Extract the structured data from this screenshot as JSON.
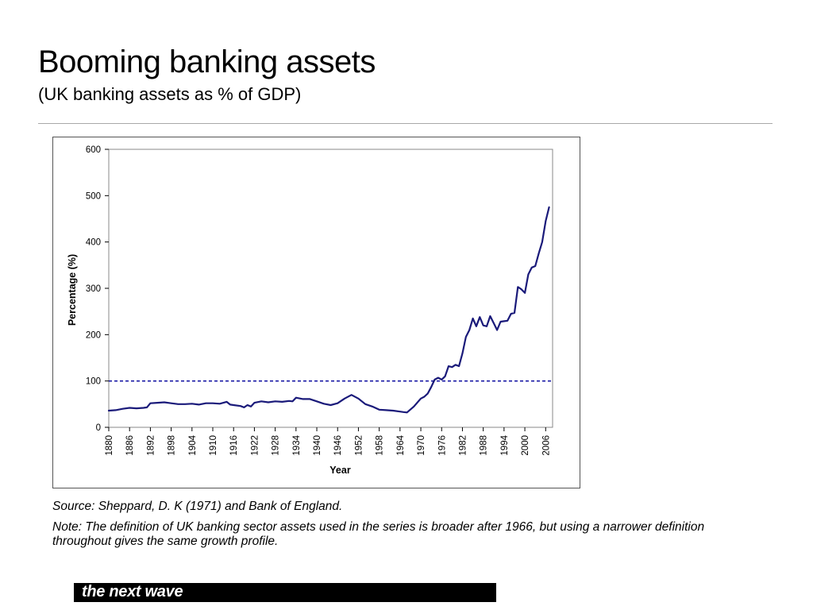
{
  "slide": {
    "title": "Booming banking assets",
    "subtitle": "(UK banking assets as % of GDP)"
  },
  "chart_data": {
    "type": "line",
    "xlabel": "Year",
    "ylabel": "Percentage (%)",
    "ylim": [
      0,
      600
    ],
    "yticks": [
      0,
      100,
      200,
      300,
      400,
      500,
      600
    ],
    "xlim": [
      1880,
      2008
    ],
    "xticks": [
      "1880",
      "1886",
      "1892",
      "1898",
      "1904",
      "1910",
      "1916",
      "1922",
      "1928",
      "1934",
      "1940",
      "1946",
      "1952",
      "1958",
      "1964",
      "1970",
      "1976",
      "1982",
      "1988",
      "1994",
      "2000",
      "2006"
    ],
    "grid": false,
    "series": [
      {
        "color": "#1a1a7a",
        "x": [
          1880,
          1882,
          1884,
          1886,
          1888,
          1890,
          1891,
          1892,
          1894,
          1896,
          1898,
          1900,
          1902,
          1904,
          1906,
          1908,
          1910,
          1912,
          1914,
          1915,
          1916,
          1918,
          1919,
          1920,
          1921,
          1922,
          1924,
          1926,
          1928,
          1930,
          1932,
          1933,
          1934,
          1936,
          1938,
          1940,
          1942,
          1944,
          1946,
          1948,
          1950,
          1952,
          1954,
          1956,
          1958,
          1960,
          1962,
          1964,
          1965,
          1966,
          1968,
          1970,
          1971,
          1972,
          1973,
          1974,
          1975,
          1976,
          1977,
          1978,
          1979,
          1980,
          1981,
          1982,
          1983,
          1984,
          1985,
          1986,
          1987,
          1988,
          1989,
          1990,
          1991,
          1992,
          1993,
          1994,
          1995,
          1996,
          1997,
          1998,
          1999,
          2000,
          2001,
          2002,
          2003,
          2004,
          2005,
          2006,
          2007
        ],
        "y": [
          36,
          37,
          40,
          42,
          41,
          42,
          43,
          52,
          53,
          54,
          52,
          50,
          50,
          51,
          49,
          52,
          52,
          51,
          55,
          49,
          48,
          46,
          43,
          48,
          45,
          53,
          56,
          54,
          56,
          55,
          57,
          56,
          64,
          61,
          61,
          56,
          51,
          48,
          52,
          62,
          70,
          62,
          50,
          45,
          38,
          37,
          36,
          34,
          33,
          32,
          45,
          62,
          66,
          73,
          87,
          103,
          107,
          103,
          110,
          132,
          130,
          135,
          132,
          160,
          195,
          210,
          235,
          218,
          238,
          220,
          218,
          240,
          225,
          210,
          228,
          229,
          230,
          245,
          247,
          303,
          298,
          290,
          330,
          345,
          348,
          375,
          400,
          445,
          475
        ]
      }
    ],
    "reference_lines": [
      {
        "y": 100,
        "style": "dashed",
        "color": "#1a1aa6"
      }
    ]
  },
  "footnotes": {
    "source": "Source: Sheppard, D. K (1971) and Bank of England.",
    "note": "Note: The definition of UK banking sector assets used in the series is broader after 1966, but using a narrower definition throughout gives the same growth profile."
  },
  "brand": {
    "text": "the next wave"
  }
}
